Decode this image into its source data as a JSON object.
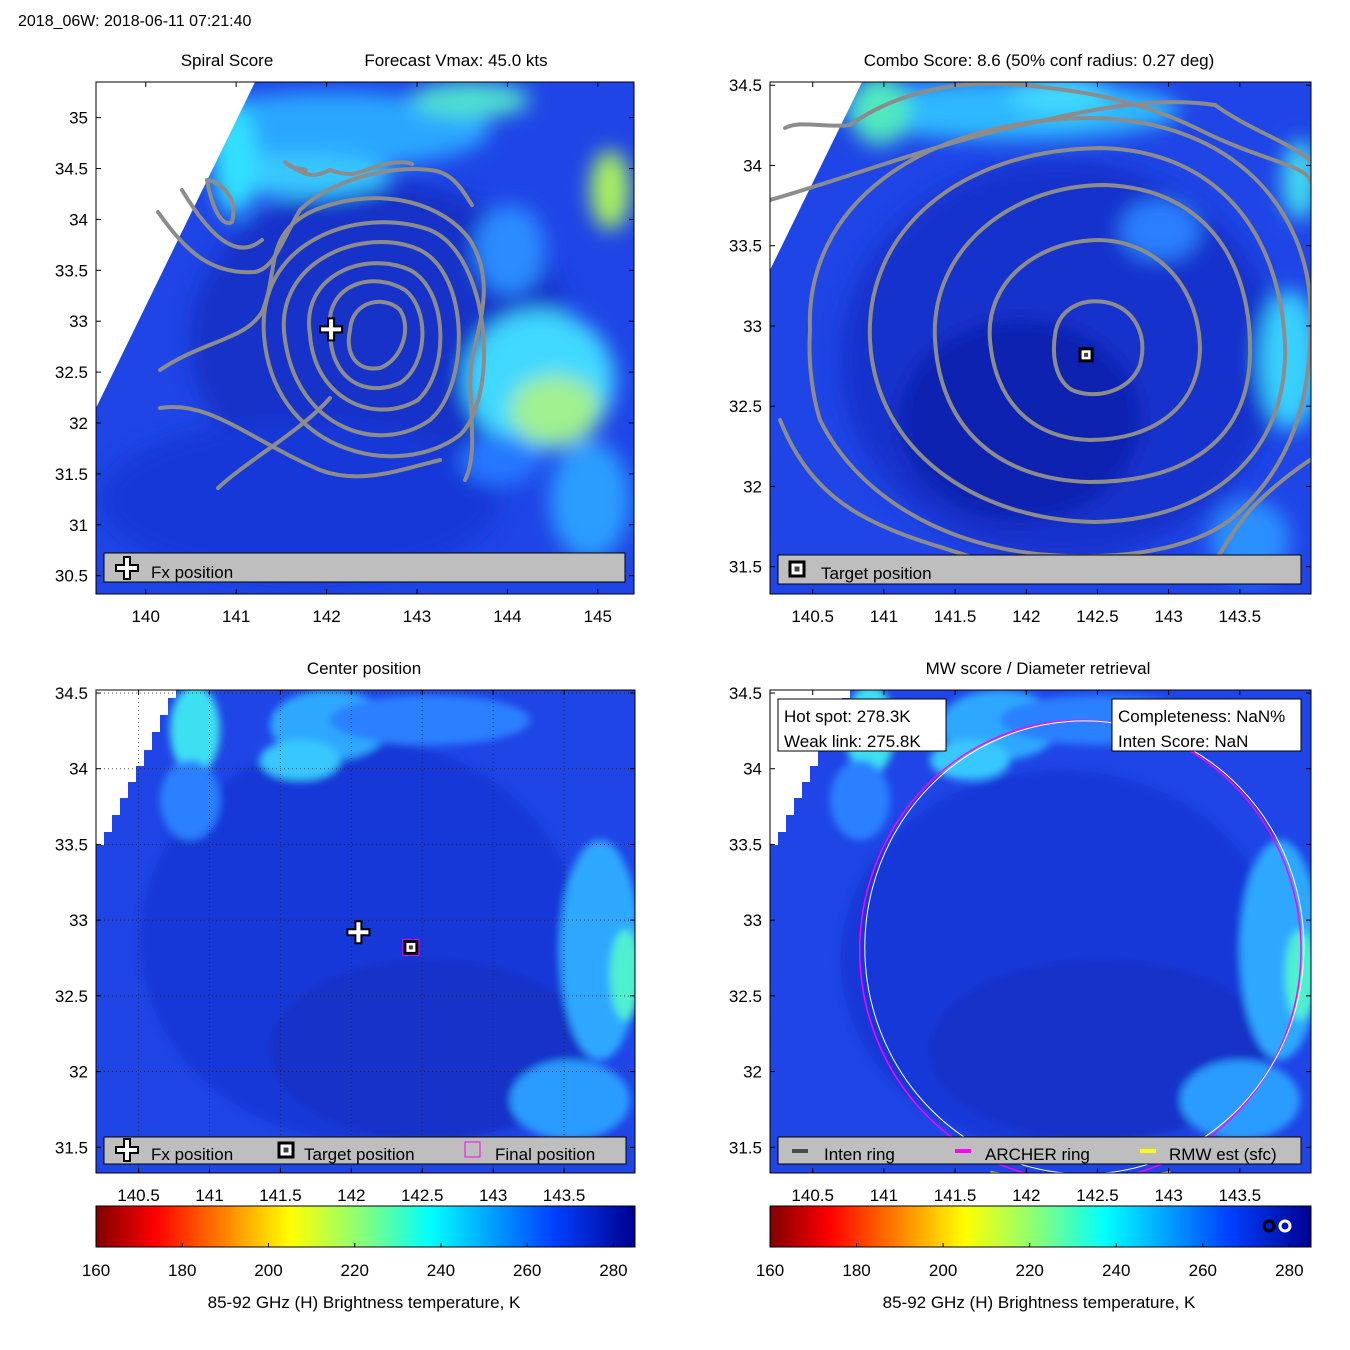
{
  "header": {
    "storm_time": "2018_06W: 2018-06-11 07:21:40"
  },
  "colors": {
    "panel_bg": "#1f45e6",
    "contour": "#8c8c8c",
    "legend_bg": "#bebebe",
    "archer_ring": "#ff00ff",
    "rmw_ring": "#ffff00",
    "inten_ring": "#4a4a4a"
  },
  "chart_data": [
    {
      "type": "heatmap",
      "id": "spiral",
      "title_left": "Spiral Score",
      "title_right": "Forecast Vmax: 45.0 kts",
      "xlim": [
        139.45,
        145.4
      ],
      "ylim": [
        30.32,
        35.35
      ],
      "xticks": [
        "140",
        "141",
        "142",
        "143",
        "144",
        "145"
      ],
      "xtick_values": [
        140,
        141,
        142,
        143,
        144,
        145
      ],
      "yticks": [
        "30.5",
        "31",
        "31.5",
        "32",
        "32.5",
        "33",
        "33.5",
        "34",
        "34.5",
        "35"
      ],
      "ytick_values": [
        30.5,
        31,
        31.5,
        32,
        32.5,
        33,
        33.5,
        34,
        34.5,
        35
      ],
      "fx_position": [
        142.05,
        32.92
      ],
      "contour_center": [
        142.6,
        32.82
      ],
      "legend": [
        "Fx position"
      ]
    },
    {
      "type": "heatmap",
      "id": "combo",
      "title": "Combo Score: 8.6  (50% conf radius: 0.27 deg)",
      "xlim": [
        140.2,
        144.0
      ],
      "ylim": [
        31.33,
        34.52
      ],
      "xticks": [
        "140.5",
        "141",
        "141.5",
        "142",
        "142.5",
        "143",
        "143.5"
      ],
      "xtick_values": [
        140.5,
        141,
        141.5,
        142,
        142.5,
        143,
        143.5
      ],
      "yticks": [
        "31.5",
        "32",
        "32.5",
        "33",
        "33.5",
        "34",
        "34.5"
      ],
      "ytick_values": [
        31.5,
        32,
        32.5,
        33,
        33.5,
        34,
        34.5
      ],
      "target_position": [
        142.42,
        32.82
      ],
      "legend": [
        "Target position"
      ]
    },
    {
      "type": "heatmap",
      "id": "center",
      "title": "Center position",
      "xlim": [
        140.2,
        144.0
      ],
      "ylim": [
        31.33,
        34.52
      ],
      "xticks": [
        "140.5",
        "141",
        "141.5",
        "142",
        "142.5",
        "143",
        "143.5"
      ],
      "xtick_values": [
        140.5,
        141,
        141.5,
        142,
        142.5,
        143,
        143.5
      ],
      "yticks": [
        "31.5",
        "32",
        "32.5",
        "33",
        "33.5",
        "34",
        "34.5"
      ],
      "ytick_values": [
        31.5,
        32,
        32.5,
        33,
        33.5,
        34,
        34.5
      ],
      "fx_position": [
        142.05,
        32.92
      ],
      "target_position": [
        142.42,
        32.82
      ],
      "final_position": [
        142.42,
        32.82
      ],
      "legend": [
        "Fx position",
        "Target position",
        "Final position"
      ]
    },
    {
      "type": "heatmap",
      "id": "mw",
      "title": "MW score / Diameter retrieval",
      "xlim": [
        140.2,
        144.0
      ],
      "ylim": [
        31.33,
        34.52
      ],
      "xticks": [
        "140.5",
        "141",
        "141.5",
        "142",
        "142.5",
        "143",
        "143.5"
      ],
      "xtick_values": [
        140.5,
        141,
        141.5,
        142,
        142.5,
        143,
        143.5
      ],
      "yticks": [
        "31.5",
        "32",
        "32.5",
        "33",
        "33.5",
        "34",
        "34.5"
      ],
      "ytick_values": [
        31.5,
        32,
        32.5,
        33,
        33.5,
        34,
        34.5
      ],
      "hot_spot": "Hot spot: 278.3K",
      "weak_link": "Weak link: 275.8K",
      "completeness": "Completeness: NaN%",
      "inten_score": "Inten Score: NaN",
      "ring_center": [
        142.38,
        32.82
      ],
      "archer_ring_radius_deg": 1.55,
      "rmw_ring_radius_deg": 1.5,
      "legend": [
        "Inten ring",
        "ARCHER ring",
        "RMW est (sfc)"
      ]
    }
  ],
  "colorbars": [
    {
      "id": "colorbar-left",
      "range": [
        160,
        285
      ],
      "ticks": [
        "160",
        "180",
        "200",
        "220",
        "240",
        "260",
        "280"
      ],
      "tick_values": [
        160,
        180,
        200,
        220,
        240,
        260,
        280
      ],
      "label": "85-92 GHz (H) Brightness temperature, K"
    },
    {
      "id": "colorbar-right",
      "range": [
        160,
        285
      ],
      "ticks": [
        "160",
        "180",
        "200",
        "220",
        "240",
        "260",
        "280"
      ],
      "tick_values": [
        160,
        180,
        200,
        220,
        240,
        260,
        280
      ],
      "label": "85-92 GHz (H) Brightness temperature, K",
      "marker_values": [
        278.3,
        275.8
      ]
    }
  ]
}
